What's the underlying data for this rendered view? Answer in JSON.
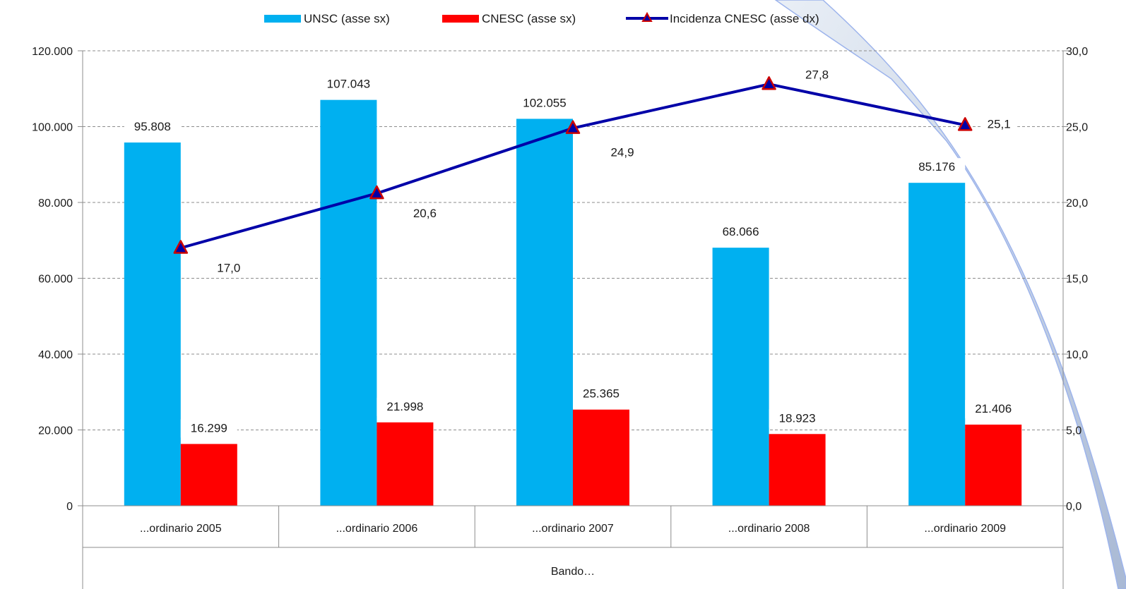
{
  "legend": {
    "items": [
      {
        "label": "UNSC (asse sx)",
        "kind": "bar",
        "color": "#00B0F0"
      },
      {
        "label": "CNESC (asse sx)",
        "kind": "bar",
        "color": "#FF0000"
      },
      {
        "label": "Incidenza CNESC (asse dx)",
        "kind": "line",
        "color": "#0000A8",
        "marker_color": "#CC0000"
      }
    ]
  },
  "chart_data": {
    "type": "bar",
    "categories": [
      "...ordinario 2005",
      "...ordinario 2006",
      "...ordinario 2007",
      "...ordinario 2008",
      "...ordinario 2009"
    ],
    "xlabel": "Bando…",
    "series": [
      {
        "name": "UNSC (asse sx)",
        "type": "bar",
        "axis": "left",
        "color": "#00B0F0",
        "values": [
          95808,
          107043,
          102055,
          68066,
          85176
        ],
        "labels": [
          "95.808",
          "107.043",
          "102.055",
          "68.066",
          "85.176"
        ]
      },
      {
        "name": "CNESC (asse sx)",
        "type": "bar",
        "axis": "left",
        "color": "#FF0000",
        "values": [
          16299,
          21998,
          25365,
          18923,
          21406
        ],
        "labels": [
          "16.299",
          "21.998",
          "25.365",
          "18.923",
          "21.406"
        ]
      },
      {
        "name": "Incidenza CNESC (asse dx)",
        "type": "line",
        "axis": "right",
        "color": "#0000A8",
        "marker": "triangle",
        "marker_color": "#CC0000",
        "values": [
          17.0,
          20.6,
          24.9,
          27.8,
          25.1
        ],
        "labels": [
          "17,0",
          "20,6",
          "24,9",
          "27,8",
          "25,1"
        ]
      }
    ],
    "y_left": {
      "min": 0,
      "max": 120000,
      "ticks": [
        0,
        20000,
        40000,
        60000,
        80000,
        100000,
        120000
      ],
      "tick_labels": [
        "0",
        "20.000",
        "40.000",
        "60.000",
        "80.000",
        "100.000",
        "120.000"
      ]
    },
    "y_right": {
      "min": 0,
      "max": 30,
      "ticks": [
        0,
        5,
        10,
        15,
        20,
        25,
        30
      ],
      "tick_labels": [
        "0,0",
        "5,0",
        "10,0",
        "15,0",
        "20,0",
        "25,0",
        "30,0"
      ]
    },
    "grid": true,
    "legend_position": "top"
  }
}
